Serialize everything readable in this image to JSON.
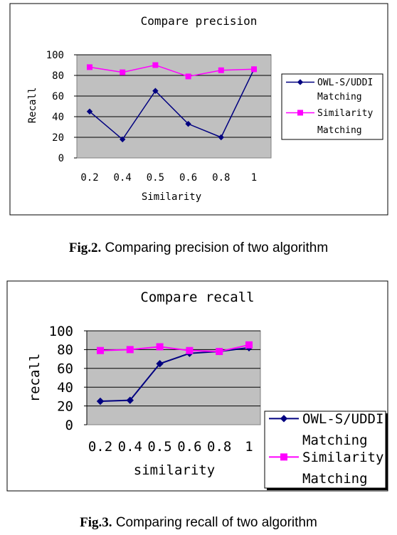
{
  "figures": [
    {
      "caption_label": "Fig.2.",
      "caption_text": " Comparing precision of two algorithm"
    },
    {
      "caption_label": "Fig.3.",
      "caption_text": " Comparing recall of two algorithm"
    }
  ],
  "chart_data": [
    {
      "type": "line",
      "title": "Compare precision",
      "xlabel": "Similarity",
      "ylabel": "Recall",
      "categories": [
        "0.2",
        "0.4",
        "0.5",
        "0.6",
        "0.8",
        "1"
      ],
      "ylim": [
        0,
        100
      ],
      "yticks": [
        0,
        20,
        40,
        60,
        80,
        100
      ],
      "grid": true,
      "plot_background": "#c0c0c0",
      "legend_position": "right",
      "series": [
        {
          "name": "OWL-S/UDDI Matching",
          "name_lines": [
            "OWL-S/UDDI",
            "Matching"
          ],
          "marker": "diamond",
          "color": "#000080",
          "values": [
            45,
            18,
            65,
            33,
            20,
            86
          ]
        },
        {
          "name": "Similarity Matching",
          "name_lines": [
            "Similarity",
            "Matching"
          ],
          "marker": "square",
          "color": "#ff00ff",
          "values": [
            88,
            83,
            90,
            79,
            85,
            86
          ]
        }
      ]
    },
    {
      "type": "line",
      "title": "Compare recall",
      "xlabel": "similarity",
      "ylabel": "recall",
      "categories": [
        "0.2",
        "0.4",
        "0.5",
        "0.6",
        "0.8",
        "1"
      ],
      "ylim": [
        0,
        100
      ],
      "yticks": [
        0,
        20,
        40,
        60,
        80,
        100
      ],
      "grid": true,
      "plot_background": "#c0c0c0",
      "legend_position": "right",
      "series": [
        {
          "name": "OWL-S/UDDI Matching",
          "name_lines": [
            "OWL-S/UDDI",
            "Matching"
          ],
          "marker": "diamond",
          "color": "#000080",
          "values": [
            25,
            26,
            65,
            76,
            78,
            82
          ]
        },
        {
          "name": "Similarity Matching",
          "name_lines": [
            "Similarity",
            "Matching"
          ],
          "marker": "square",
          "color": "#ff00ff",
          "values": [
            79,
            80,
            83,
            79,
            78,
            85
          ]
        }
      ]
    }
  ]
}
